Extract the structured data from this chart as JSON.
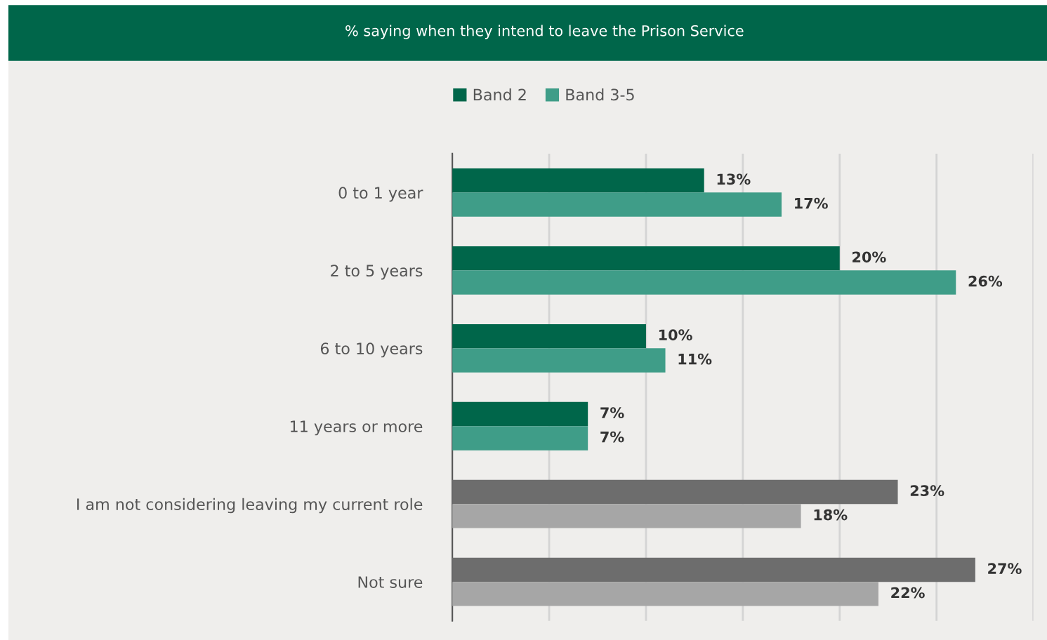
{
  "chart_data": {
    "type": "bar",
    "orientation": "horizontal",
    "title": "% saying when they intend to leave the Prison Service",
    "categories": [
      "0 to 1 year",
      "2 to 5 years",
      "6 to 10 years",
      "11 years or more",
      "I am not considering leaving my current role",
      "Not sure"
    ],
    "series": [
      {
        "name": "Band 2",
        "color": "#00664a",
        "colors": [
          "#00664a",
          "#00664a",
          "#00664a",
          "#00664a",
          "#6d6d6d",
          "#6d6d6d"
        ],
        "values": [
          13,
          20,
          10,
          7,
          23,
          27
        ],
        "value_labels": [
          "13%",
          "20%",
          "10%",
          "7%",
          "23%",
          "27%"
        ]
      },
      {
        "name": "Band 3-5",
        "color": "#3f9d88",
        "colors": [
          "#3f9d88",
          "#3f9d88",
          "#3f9d88",
          "#3f9d88",
          "#a6a6a6",
          "#a6a6a6"
        ],
        "values": [
          17,
          26,
          11,
          7,
          18,
          22
        ],
        "value_labels": [
          "17%",
          "26%",
          "11%",
          "7%",
          "18%",
          "22%"
        ]
      }
    ],
    "xlim": [
      0,
      30
    ],
    "xticks": [
      {
        "value": 0,
        "label": null
      },
      {
        "value": 5,
        "label": null
      },
      {
        "value": 10,
        "label": null
      },
      {
        "value": 15,
        "label": null
      },
      {
        "value": 20,
        "label": null
      },
      {
        "value": 25,
        "label": null
      },
      {
        "value": 30,
        "label": null
      }
    ],
    "tick_labels": "y",
    "grid": "x",
    "legend": "top"
  }
}
